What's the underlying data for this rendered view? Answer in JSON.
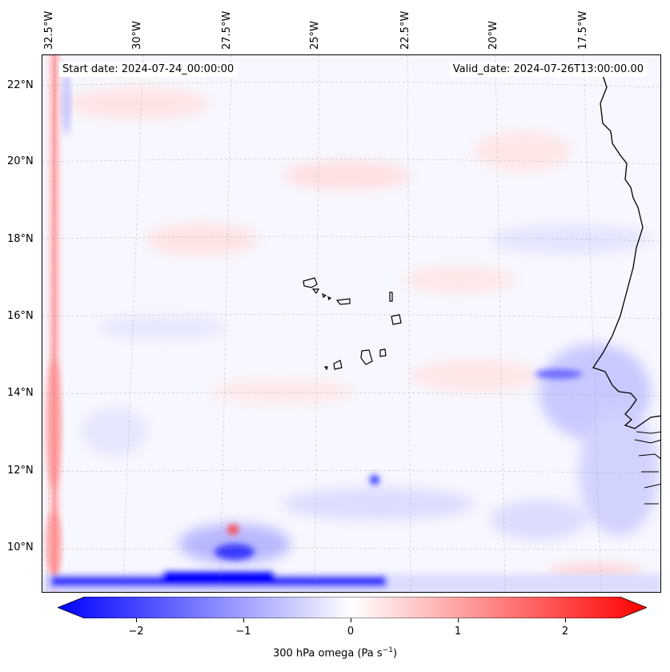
{
  "map": {
    "start_date": "Start date: 2024-07-24_00:00:00",
    "valid_date": "Valid_date: 2024-07-26T13:00:00.00",
    "lat_labels": [
      "22°N",
      "20°N",
      "18°N",
      "16°N",
      "14°N",
      "12°N",
      "10°N"
    ],
    "lon_labels": [
      "32.5°W",
      "30°W",
      "27.5°W",
      "25°W",
      "22.5°W",
      "20°W",
      "17.5°W"
    ],
    "variable": "300 hPa omega",
    "units": "Pa s",
    "units_exponent": "−1"
  },
  "colorbar": {
    "ticks": [
      "−2",
      "−1",
      "0",
      "1",
      "2"
    ],
    "tick_values": [
      -2,
      -1,
      0,
      1,
      2
    ],
    "vmin": -2.5,
    "vmax": 2.5,
    "colors": {
      "low": "#0000ff",
      "mid": "#ffffff",
      "high": "#ff0000"
    }
  }
}
